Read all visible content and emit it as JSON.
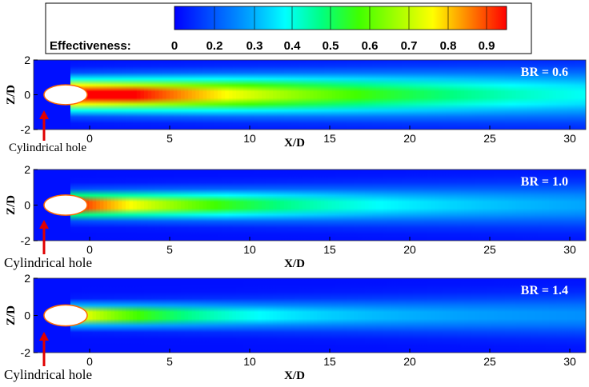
{
  "colorbar": {
    "label": "Effectiveness:",
    "ticks": [
      "0",
      "0.2",
      "0.3",
      "0.4",
      "0.5",
      "0.6",
      "0.7",
      "0.8",
      "0.9"
    ],
    "range": [
      0,
      0.95
    ],
    "colors": [
      "#0000ff",
      "#0050ff",
      "#00a0ff",
      "#00ffff",
      "#00ff80",
      "#40ff00",
      "#a0ff00",
      "#ffff00",
      "#ff8000",
      "#ff0000"
    ]
  },
  "chart_data": [
    {
      "type": "heatmap",
      "title": "BR = 0.6",
      "xlabel": "X/D",
      "ylabel": "Z/D",
      "xlim": [
        -3.5,
        31
      ],
      "ylim": [
        -2,
        2
      ],
      "x_ticks": [
        "0",
        "5",
        "10",
        "15",
        "20",
        "25",
        "30"
      ],
      "y_ticks": [
        "2",
        "0",
        "-2"
      ],
      "annotation": "Cylindrical hole",
      "jet": {
        "peak_effectiveness": 0.95,
        "decay": 0.06,
        "spread": 0.55
      }
    },
    {
      "type": "heatmap",
      "title": "BR = 1.0",
      "xlabel": "X/D",
      "ylabel": "Z/D",
      "xlim": [
        -3.5,
        31
      ],
      "ylim": [
        -2,
        2
      ],
      "x_ticks": [
        "0",
        "5",
        "10",
        "15",
        "20",
        "25",
        "30"
      ],
      "y_ticks": [
        "2",
        "0",
        "-2"
      ],
      "annotation": "Cylindrical hole",
      "jet": {
        "peak_effectiveness": 0.8,
        "decay": 0.1,
        "spread": 0.4
      }
    },
    {
      "type": "heatmap",
      "title": "BR = 1.4",
      "xlabel": "X/D",
      "ylabel": "Z/D",
      "xlim": [
        -3.5,
        31
      ],
      "ylim": [
        -2,
        2
      ],
      "x_ticks": [
        "0",
        "5",
        "10",
        "15",
        "20",
        "25",
        "30"
      ],
      "y_ticks": [
        "2",
        "0",
        "-2"
      ],
      "annotation": "Cylindrical hole",
      "jet": {
        "peak_effectiveness": 0.65,
        "decay": 0.15,
        "spread": 0.32
      }
    }
  ]
}
